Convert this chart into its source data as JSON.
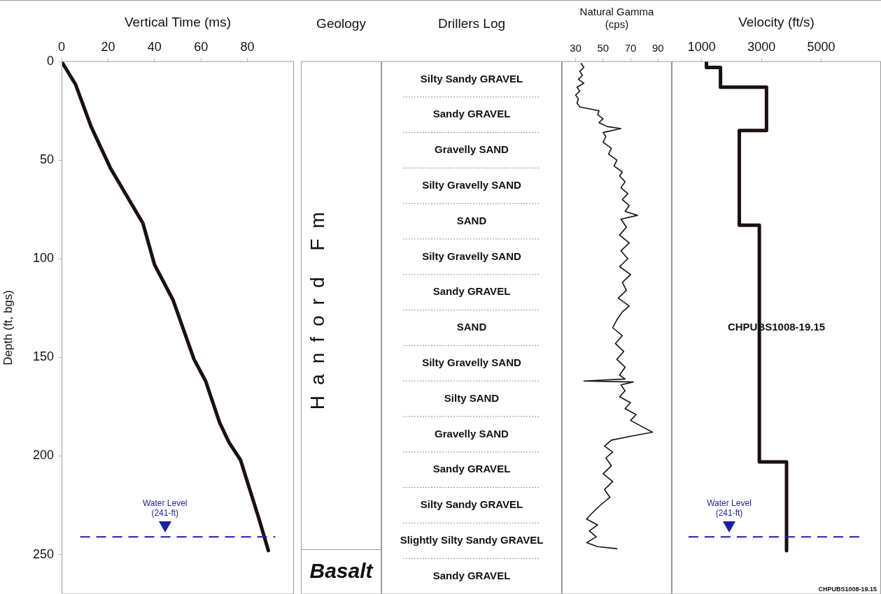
{
  "chart_data": [
    {
      "type": "line",
      "xlabel": "Vertical Time (ms)",
      "ylabel": "Depth (ft, bgs)",
      "xlim": [
        0,
        100
      ],
      "xticks": [
        0,
        20,
        40,
        60,
        80
      ],
      "ylim": [
        270,
        0
      ],
      "yticks": [
        0,
        50,
        100,
        150,
        200,
        250
      ],
      "series": [
        {
          "color": "#1a1010",
          "x": [
            0,
            6,
            12.7,
            21,
            35,
            40,
            48,
            57,
            62,
            68,
            72,
            77,
            85,
            89
          ],
          "values": [
            0,
            11.6,
            33,
            54,
            82,
            103,
            121,
            151,
            162,
            183,
            193,
            202,
            232,
            248
          ]
        }
      ],
      "ref_lines": [
        {
          "axis": "y",
          "value": 241,
          "label": "Water Level\n(241-ft)",
          "color": "#1c1ca8",
          "line_style": "dashed"
        }
      ]
    },
    {
      "type": "other",
      "title": "Geology",
      "annotations": [
        "Hanford Fm",
        "Basalt"
      ]
    },
    {
      "type": "other",
      "title": "Drillers Log",
      "annotations": [
        "Silty Sandy GRAVEL",
        "Sandy GRAVEL",
        "Gravelly SAND",
        "Silty Gravelly SAND",
        "SAND",
        "Silty Gravelly SAND",
        "Sandy GRAVEL",
        "SAND",
        "Silty Gravelly SAND",
        "Silty SAND",
        "Gravelly SAND",
        "Sandy GRAVEL",
        "Silty Sandy GRAVEL",
        "Slightly Silty Sandy GRAVEL",
        "Sandy GRAVEL"
      ]
    },
    {
      "type": "line",
      "xlabel": "Natural Gamma\n(cps)",
      "xlim": [
        20,
        100
      ],
      "xticks": [
        30,
        50,
        70,
        90
      ],
      "ylim": [
        270,
        0
      ],
      "tick_labels": "x",
      "series": [
        {
          "color": "#1a1010",
          "x": [
            34,
            36,
            33,
            35,
            32,
            36,
            31,
            33,
            30,
            32,
            31,
            33,
            47,
            46,
            50,
            47,
            53,
            63,
            50,
            52,
            50,
            56,
            54,
            60,
            58,
            64,
            62,
            66,
            63,
            68,
            64,
            69,
            66,
            75,
            63,
            67,
            62,
            69,
            63,
            68,
            62,
            70,
            64,
            67,
            61,
            69,
            64,
            60,
            57,
            64,
            59,
            65,
            60,
            66,
            62,
            66,
            36,
            72,
            63,
            66,
            62,
            70,
            66,
            74,
            70,
            78,
            86,
            70,
            56,
            51,
            57,
            52,
            56,
            50,
            57,
            51,
            55,
            48,
            42,
            38,
            46,
            40,
            45,
            38,
            46,
            60
          ],
          "values": [
            1,
            3,
            5,
            7,
            9,
            11,
            13,
            15,
            17,
            19,
            21,
            23,
            25,
            27,
            29,
            31,
            33,
            34,
            36,
            38,
            41,
            44,
            47,
            50,
            53,
            56,
            58,
            61,
            64,
            67,
            70,
            73,
            76,
            78,
            80,
            84,
            88,
            92,
            96,
            100,
            104,
            108,
            112,
            116,
            120,
            124,
            127,
            131,
            135,
            139,
            143,
            147,
            151,
            155,
            159,
            161,
            162,
            162.5,
            164,
            167,
            170,
            173,
            176,
            179,
            182,
            185,
            188,
            190,
            192,
            195,
            198,
            201,
            205,
            209,
            213,
            217,
            221,
            225,
            229,
            232,
            235,
            238,
            241,
            244,
            246,
            247
          ]
        }
      ]
    },
    {
      "type": "line",
      "xlabel": "Velocity (ft/s)",
      "xlim": [
        0,
        7000
      ],
      "xticks": [
        1000,
        3000,
        5000
      ],
      "ylim": [
        270,
        0
      ],
      "tick_labels": "x",
      "series": [
        {
          "color": "#1a1010",
          "x": [
            1160,
            1160,
            1630,
            1630,
            3170,
            3170,
            2260,
            2260,
            2930,
            2930,
            3840,
            3840
          ],
          "values": [
            0,
            3,
            3,
            13,
            13,
            35,
            35,
            83,
            83,
            203,
            203,
            248
          ]
        }
      ],
      "ref_lines": [
        {
          "axis": "y",
          "value": 241,
          "label": "Water Level\n(241-ft)",
          "color": "#1c1ca8",
          "line_style": "dashed"
        }
      ],
      "annotations": [
        "CHPUBS1008-19.15"
      ]
    }
  ]
}
